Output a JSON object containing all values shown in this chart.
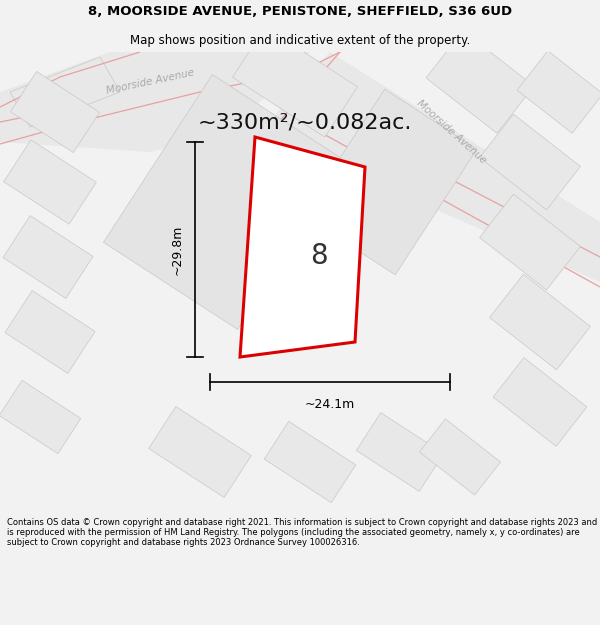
{
  "title_line1": "8, MOORSIDE AVENUE, PENISTONE, SHEFFIELD, S36 6UD",
  "title_line2": "Map shows position and indicative extent of the property.",
  "footer_text": "Contains OS data © Crown copyright and database right 2021. This information is subject to Crown copyright and database rights 2023 and is reproduced with the permission of HM Land Registry. The polygons (including the associated geometry, namely x, y co-ordinates) are subject to Crown copyright and database rights 2023 Ordnance Survey 100026316.",
  "area_label": "~330m²/~0.082ac.",
  "plot_number": "8",
  "dim_width": "~24.1m",
  "dim_height": "~29.8m",
  "bg_color": "#f2f2f2",
  "map_bg": "#ffffff",
  "building_fill": "#e8e8e8",
  "building_edge": "#c8c8c8",
  "plot_fill": "#ffffff",
  "plot_edge": "#dd0000",
  "road_outline_color": "#e8a0a0",
  "street_label_color": "#aaaaaa",
  "street_label1": "Moorside Avenue",
  "street_label2": "Moorside Avenue",
  "title_fontsize": 9.5,
  "subtitle_fontsize": 8.5,
  "footer_fontsize": 6.0,
  "area_fontsize": 16,
  "number_fontsize": 20,
  "dim_fontsize": 9
}
